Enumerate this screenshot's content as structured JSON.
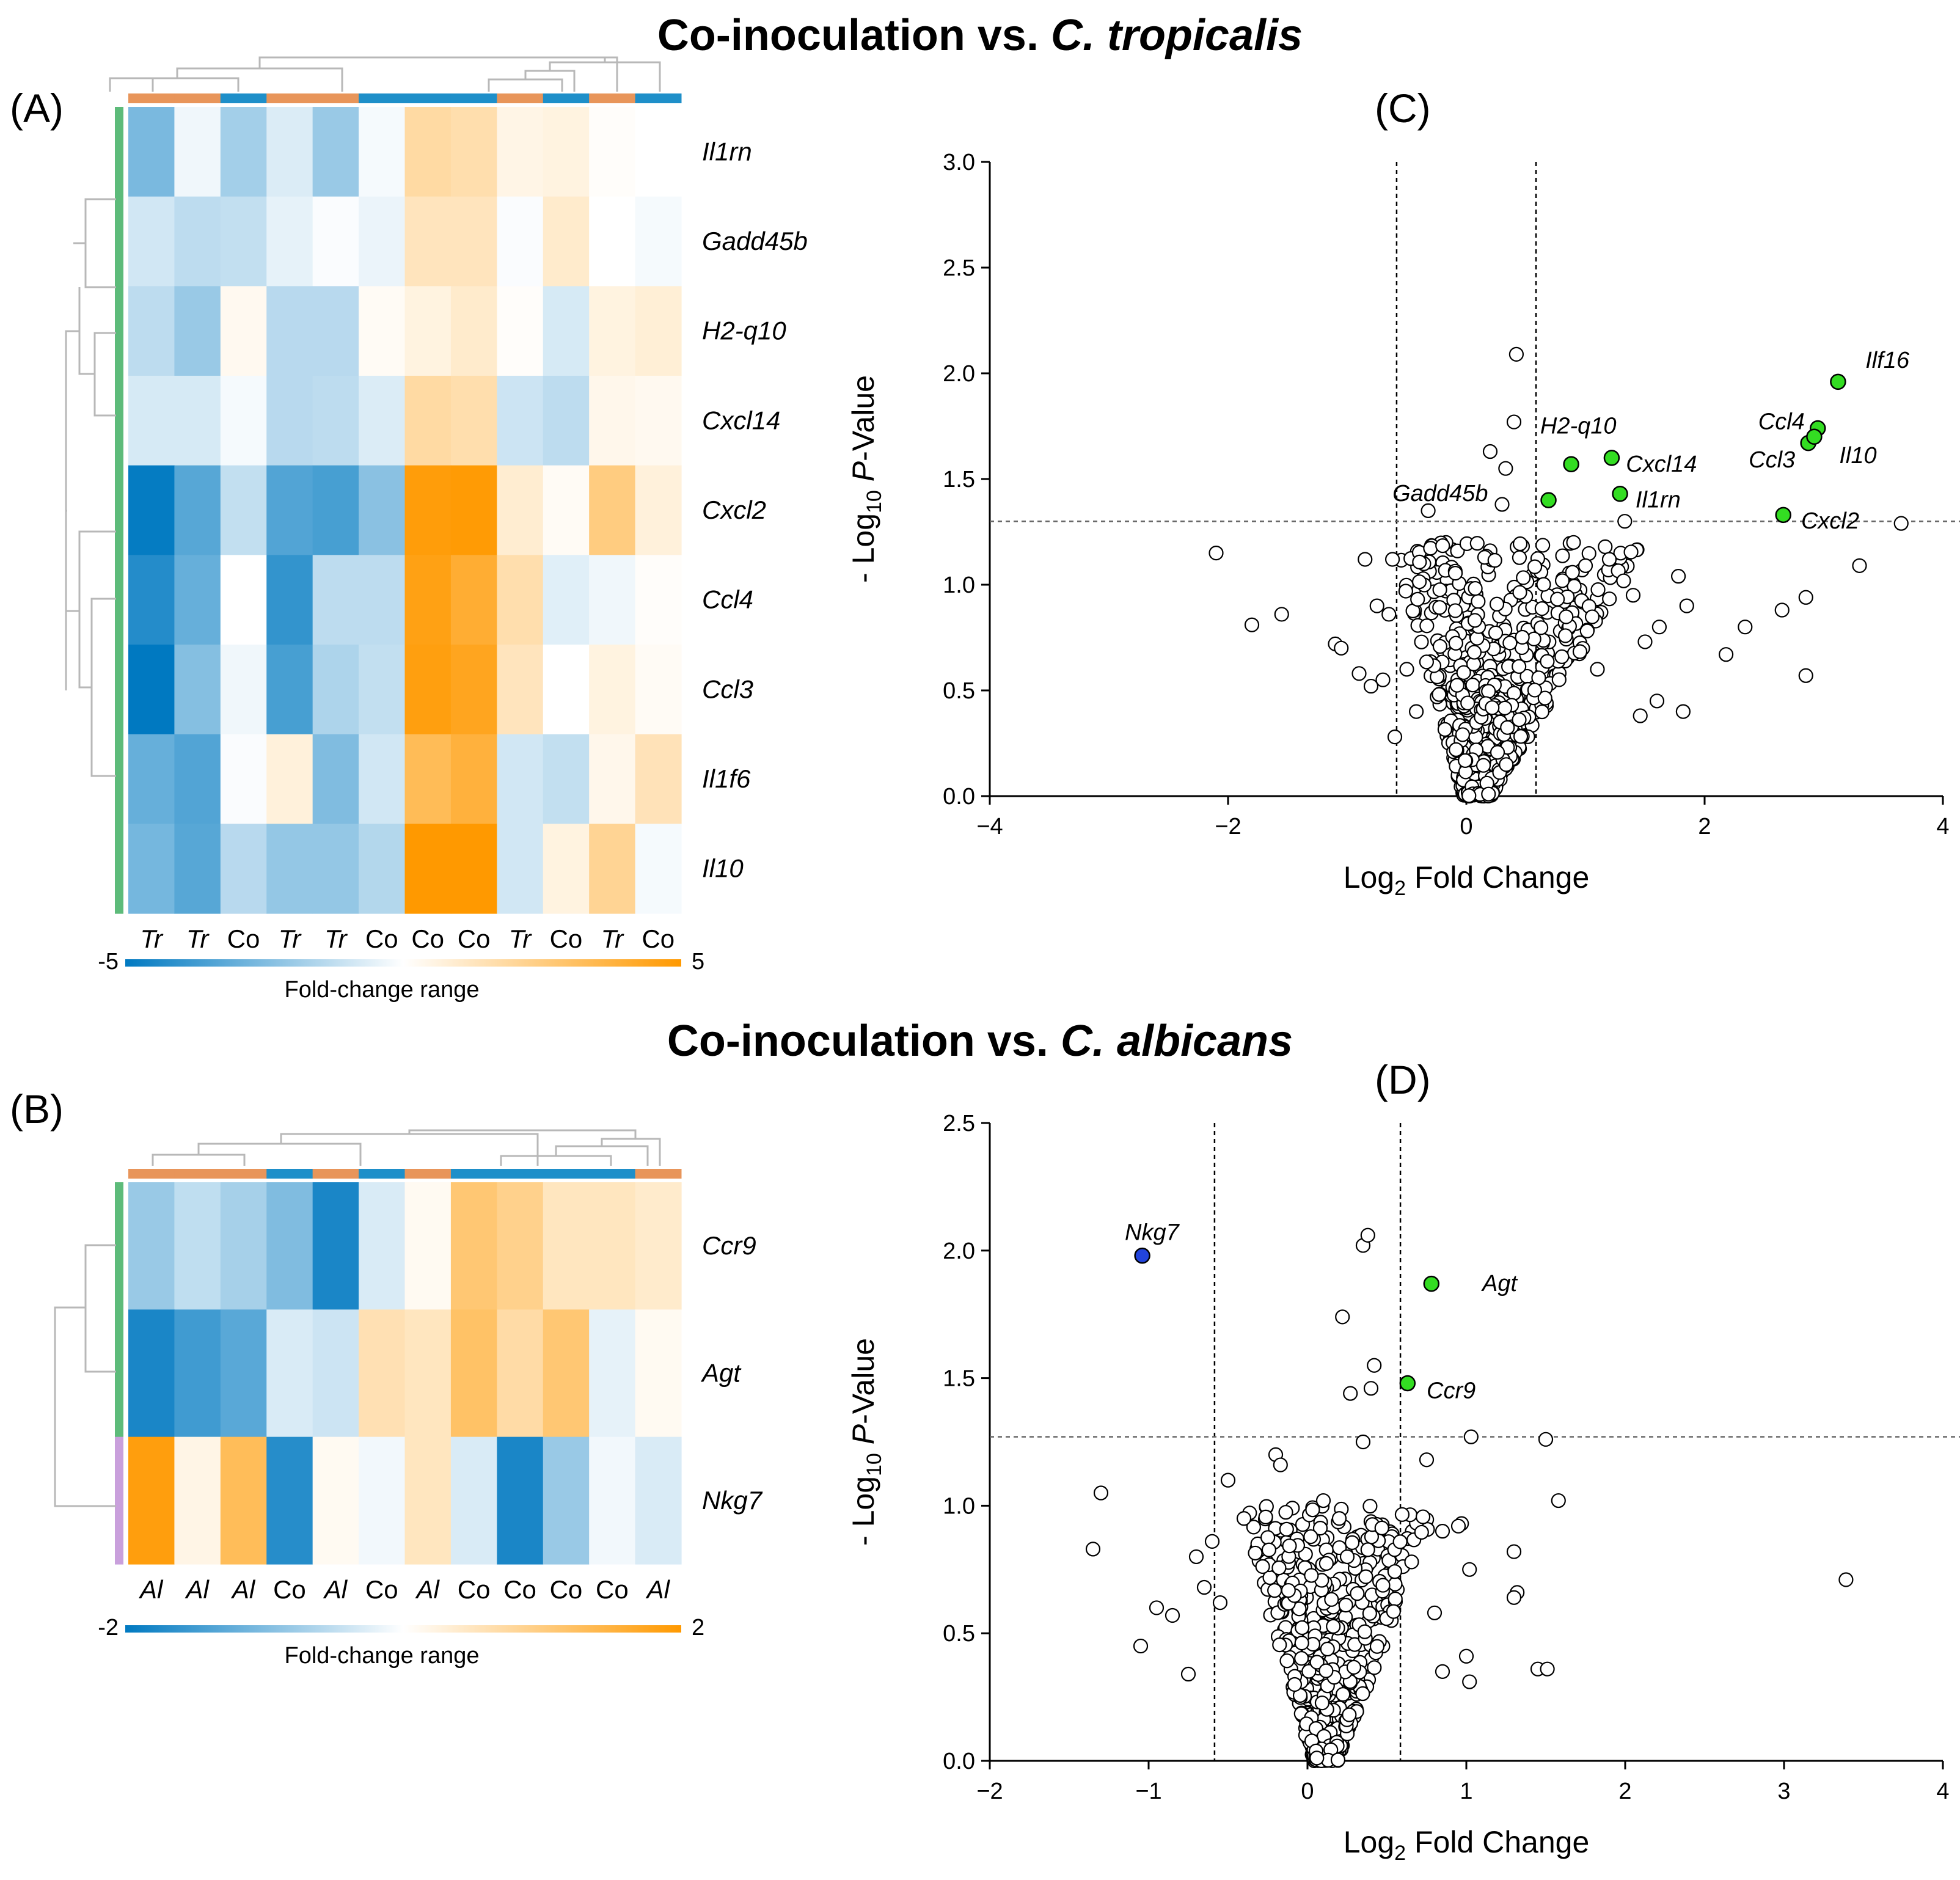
{
  "title_top": {
    "main": "Co-inoculation vs. ",
    "species": "C. tropicalis"
  },
  "title_bottom": {
    "main": "Co-inoculation vs. ",
    "species": "C. albicans"
  },
  "colors": {
    "blue_dark": "#0079C1",
    "orange_dark": "#FF9900",
    "group_orange": "#E8955A",
    "group_blue": "#1E8FC9",
    "gene_green": "#5DBB7A",
    "gene_purple": "#C9A0DC",
    "sig_green": "#33DD22",
    "sig_blue": "#2244DD"
  },
  "chart_data": [
    {
      "type": "heatmap",
      "panel": "(A)",
      "rows": [
        "Il1rn",
        "Gadd45b",
        "H2-q10",
        "Cxcl14",
        "Cxcl2",
        "Ccl4",
        "Ccl3",
        "Il1f6",
        "Il10"
      ],
      "columns": [
        "Tr",
        "Tr",
        "Co",
        "Tr",
        "Tr",
        "Co",
        "Co",
        "Co",
        "Tr",
        "Co",
        "Tr",
        "Co"
      ],
      "column_groups": [
        "Tr",
        "Tr",
        "Co",
        "Tr",
        "Tr",
        "Co",
        "Co",
        "Co",
        "Tr",
        "Co",
        "Tr",
        "Co"
      ],
      "values": [
        [
          -2.6,
          -0.3,
          -1.8,
          -0.7,
          -2.0,
          -0.2,
          1.8,
          1.6,
          0.5,
          0.6,
          0.1,
          0.0
        ],
        [
          -0.9,
          -1.3,
          -1.2,
          -0.5,
          -0.1,
          -0.4,
          1.3,
          1.3,
          -0.1,
          1.0,
          0.0,
          -0.2
        ],
        [
          -1.3,
          -2.0,
          0.3,
          -1.4,
          -1.4,
          0.2,
          0.6,
          1.0,
          0.1,
          -0.8,
          0.6,
          0.8
        ],
        [
          -0.8,
          -0.8,
          -0.2,
          -1.4,
          -1.3,
          -0.7,
          1.8,
          1.6,
          -1.0,
          -1.3,
          0.4,
          0.3
        ],
        [
          -4.9,
          -3.3,
          -1.2,
          -3.4,
          -3.6,
          -2.3,
          4.8,
          4.9,
          0.9,
          0.2,
          2.5,
          0.7
        ],
        [
          -4.3,
          -3.0,
          0.0,
          -4.0,
          -1.3,
          -1.3,
          4.6,
          4.0,
          1.6,
          -0.6,
          -0.3,
          0.1
        ],
        [
          -5.0,
          -2.4,
          -0.3,
          -3.6,
          -1.6,
          -1.2,
          4.7,
          4.4,
          1.3,
          0.0,
          0.6,
          0.2
        ],
        [
          -3.0,
          -3.4,
          -0.1,
          0.7,
          -2.5,
          -0.9,
          3.3,
          3.8,
          -0.9,
          -1.2,
          0.4,
          1.4
        ],
        [
          -2.7,
          -3.3,
          -1.4,
          -2.1,
          -2.1,
          -1.5,
          5.0,
          5.0,
          -0.9,
          0.6,
          2.1,
          -0.2
        ]
      ],
      "gene_group_colors": [
        "green"
      ],
      "scale": {
        "min": -5,
        "max": 5,
        "min_label": "-5",
        "max_label": "5",
        "label": "Fold-change range"
      }
    },
    {
      "type": "heatmap",
      "panel": "(B)",
      "rows": [
        "Ccr9",
        "Agt",
        "Nkg7"
      ],
      "columns": [
        "Al",
        "Al",
        "Al",
        "Co",
        "Al",
        "Co",
        "Al",
        "Co",
        "Co",
        "Co",
        "Co",
        "Al"
      ],
      "column_groups": [
        "Al",
        "Al",
        "Al",
        "Co",
        "Al",
        "Co",
        "Al",
        "Co",
        "Co",
        "Co",
        "Co",
        "Al"
      ],
      "values": [
        [
          -0.8,
          -0.5,
          -0.7,
          -1.0,
          -1.8,
          -0.3,
          0.1,
          1.1,
          0.9,
          0.5,
          0.5,
          0.4
        ],
        [
          -1.8,
          -1.5,
          -1.3,
          -0.3,
          -0.4,
          0.6,
          0.5,
          1.2,
          0.7,
          1.1,
          -0.2,
          0.1
        ],
        [
          1.9,
          0.2,
          1.3,
          -1.7,
          0.1,
          -0.1,
          0.5,
          -0.3,
          -1.8,
          -0.8,
          -0.1,
          -0.3
        ]
      ],
      "gene_group_colors": [
        "green",
        "green",
        "purple"
      ],
      "scale": {
        "min": -2,
        "max": 2,
        "min_label": "-2",
        "max_label": "2",
        "label": "Fold-change range"
      }
    },
    {
      "type": "scatter",
      "panel": "(C)",
      "title": "",
      "xlabel_parts": [
        "Log",
        "2",
        " Fold Change"
      ],
      "ylabel_parts": [
        "- Log",
        "10",
        " ",
        "P",
        "-Value"
      ],
      "xlim": [
        -4,
        4
      ],
      "ylim": [
        0,
        3.0
      ],
      "xticks": [
        -4,
        -2,
        0,
        2,
        4
      ],
      "xtick_labels": [
        "−4",
        "−2",
        "0",
        "2",
        "4"
      ],
      "yticks": [
        0.0,
        0.5,
        1.0,
        1.5,
        2.0,
        2.5,
        3.0
      ],
      "ytick_labels": [
        "0.0",
        "0.5",
        "1.0",
        "1.5",
        "2.0",
        "2.5",
        "3.0"
      ],
      "thresholds": {
        "x": [
          -0.585,
          0.585
        ],
        "y": 1.3
      },
      "highlighted": [
        {
          "label": "Ilf16",
          "x": 3.12,
          "y": 1.96,
          "color": "green"
        },
        {
          "label": "Ccl4",
          "x": 2.95,
          "y": 1.74,
          "color": "green"
        },
        {
          "label": "Ccl3",
          "x": 2.87,
          "y": 1.67,
          "color": "green"
        },
        {
          "label": "Il10",
          "x": 2.92,
          "y": 1.7,
          "color": "green"
        },
        {
          "label": "Cxcl2",
          "x": 2.66,
          "y": 1.33,
          "color": "green"
        },
        {
          "label": "Cxcl14",
          "x": 1.22,
          "y": 1.6,
          "color": "green"
        },
        {
          "label": "Il1rn",
          "x": 1.29,
          "y": 1.43,
          "color": "green"
        },
        {
          "label": "H2-q10",
          "x": 0.88,
          "y": 1.57,
          "color": "green"
        },
        {
          "label": "Gadd45b",
          "x": 0.69,
          "y": 1.4,
          "color": "green"
        }
      ],
      "labels": [
        {
          "text": "Ilf16",
          "x": 3.35,
          "y": 2.06
        },
        {
          "text": "Ccl4",
          "x": 2.45,
          "y": 1.77
        },
        {
          "text": "Ccl3",
          "x": 2.37,
          "y": 1.59
        },
        {
          "text": "Il10",
          "x": 3.13,
          "y": 1.61
        },
        {
          "text": "Cxcl2",
          "x": 2.81,
          "y": 1.3
        },
        {
          "text": "Cxcl14",
          "x": 1.34,
          "y": 1.57
        },
        {
          "text": "Il1rn",
          "x": 1.42,
          "y": 1.4
        },
        {
          "text": "H2-q10",
          "x": 0.62,
          "y": 1.75
        },
        {
          "text": "Gadd45b",
          "x": -0.62,
          "y": 1.43
        }
      ],
      "outliers": [
        [
          -2.1,
          1.15
        ],
        [
          -1.8,
          0.81
        ],
        [
          -1.55,
          0.86
        ],
        [
          -1.1,
          0.72
        ],
        [
          -1.05,
          0.7
        ],
        [
          -0.9,
          0.58
        ],
        [
          -0.8,
          0.52
        ],
        [
          -0.7,
          0.55
        ],
        [
          -0.75,
          0.9
        ],
        [
          -0.65,
          0.86
        ],
        [
          -0.6,
          0.28
        ],
        [
          -0.62,
          1.12
        ],
        [
          -0.85,
          1.12
        ],
        [
          -0.32,
          1.35
        ],
        [
          -0.5,
          0.6
        ],
        [
          -0.42,
          0.4
        ],
        [
          0.42,
          2.09
        ],
        [
          0.4,
          1.77
        ],
        [
          0.33,
          1.55
        ],
        [
          0.2,
          1.63
        ],
        [
          0.3,
          1.38
        ],
        [
          1.4,
          0.95
        ],
        [
          1.33,
          1.3
        ],
        [
          1.6,
          0.45
        ],
        [
          1.82,
          0.4
        ],
        [
          1.46,
          0.38
        ],
        [
          2.18,
          0.67
        ],
        [
          2.34,
          0.8
        ],
        [
          2.65,
          0.88
        ],
        [
          2.85,
          0.94
        ],
        [
          2.85,
          0.57
        ],
        [
          3.3,
          1.09
        ],
        [
          3.65,
          1.29
        ],
        [
          1.78,
          1.04
        ],
        [
          1.85,
          0.9
        ],
        [
          1.5,
          0.73
        ],
        [
          1.2,
          1.12
        ],
        [
          1.0,
          1.09
        ],
        [
          0.9,
          1.2
        ],
        [
          1.1,
          0.6
        ],
        [
          1.62,
          0.8
        ]
      ],
      "cloud": {
        "n": 650,
        "seed": 11,
        "center_x": 0.05,
        "spread_low": 0.6,
        "spread_high": 1.3,
        "max_y": 1.2
      }
    },
    {
      "type": "scatter",
      "panel": "(D)",
      "title": "",
      "xlabel_parts": [
        "Log",
        "2",
        " Fold Change"
      ],
      "ylabel_parts": [
        "- Log",
        "10",
        " ",
        "P",
        "-Value"
      ],
      "xlim": [
        -2,
        4
      ],
      "ylim": [
        0,
        2.5
      ],
      "xticks": [
        -2,
        -1,
        0,
        1,
        2,
        3,
        4
      ],
      "xtick_labels": [
        "−2",
        "−1",
        "0",
        "1",
        "2",
        "3",
        "4"
      ],
      "yticks": [
        0.0,
        0.5,
        1.0,
        1.5,
        2.0,
        2.5
      ],
      "ytick_labels": [
        "0.0",
        "0.5",
        "1.0",
        "1.5",
        "2.0",
        "2.5"
      ],
      "thresholds": {
        "x": [
          -0.585,
          0.585
        ],
        "y": 1.27
      },
      "highlighted": [
        {
          "label": "Nkg7",
          "x": -1.04,
          "y": 1.98,
          "color": "blue"
        },
        {
          "label": "Agt",
          "x": 0.78,
          "y": 1.87,
          "color": "green"
        },
        {
          "label": "Ccr9",
          "x": 0.63,
          "y": 1.48,
          "color": "green"
        }
      ],
      "labels": [
        {
          "text": "Nkg7",
          "x": -1.15,
          "y": 2.07
        },
        {
          "text": "Agt",
          "x": 1.1,
          "y": 1.87
        },
        {
          "text": "Ccr9",
          "x": 0.75,
          "y": 1.45
        }
      ],
      "outliers": [
        [
          -1.3,
          1.05
        ],
        [
          -1.35,
          0.83
        ],
        [
          -1.05,
          0.45
        ],
        [
          -0.95,
          0.6
        ],
        [
          -0.85,
          0.57
        ],
        [
          -0.7,
          0.8
        ],
        [
          -0.75,
          0.34
        ],
        [
          -0.65,
          0.68
        ],
        [
          -0.6,
          0.86
        ],
        [
          -0.55,
          0.62
        ],
        [
          0.35,
          2.02
        ],
        [
          0.38,
          2.06
        ],
        [
          0.22,
          1.74
        ],
        [
          0.42,
          1.55
        ],
        [
          0.27,
          1.44
        ],
        [
          0.4,
          1.46
        ],
        [
          0.35,
          1.25
        ],
        [
          1.03,
          1.27
        ],
        [
          1.5,
          1.26
        ],
        [
          1.58,
          1.02
        ],
        [
          3.39,
          0.71
        ],
        [
          1.3,
          0.82
        ],
        [
          1.32,
          0.66
        ],
        [
          1.3,
          0.64
        ],
        [
          1.45,
          0.36
        ],
        [
          1.51,
          0.36
        ],
        [
          1.0,
          0.41
        ],
        [
          1.02,
          0.31
        ],
        [
          0.97,
          0.93
        ],
        [
          0.95,
          0.92
        ],
        [
          0.85,
          0.9
        ],
        [
          1.02,
          0.75
        ],
        [
          0.8,
          0.58
        ],
        [
          0.85,
          0.35
        ],
        [
          -0.2,
          1.2
        ],
        [
          -0.17,
          1.16
        ],
        [
          -0.5,
          1.1
        ],
        [
          -0.4,
          0.95
        ],
        [
          0.1,
          1.02
        ],
        [
          0.2,
          0.95
        ],
        [
          0.25,
          0.8
        ],
        [
          0.75,
          1.18
        ]
      ],
      "cloud": {
        "n": 560,
        "seed": 23,
        "center_x": 0.1,
        "spread_low": 0.55,
        "spread_high": 0.75,
        "max_y": 1.0
      }
    }
  ]
}
